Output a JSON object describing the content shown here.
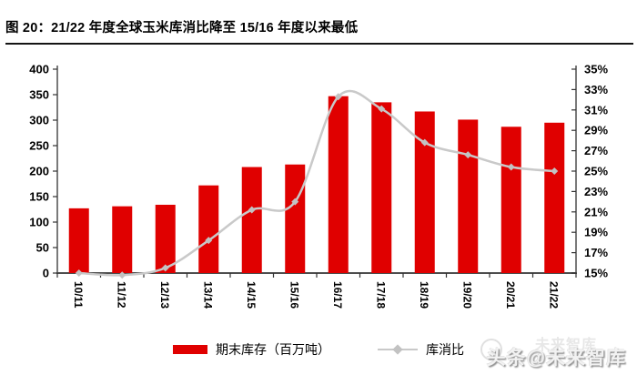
{
  "page": {
    "title": "图 20：21/22 年度全球玉米库消比降至 15/16 年度以来最低",
    "watermark": "头条@未来智库",
    "watermark_ghost": "未来智库"
  },
  "colors": {
    "bar": "#e00000",
    "line": "#c9c9c9",
    "marker": "#c2c2c2",
    "axis_side": "#333333",
    "axis_bottom": "#4d4d4d",
    "tick_text": "#000000"
  },
  "icons": {
    "watermark_logo": "smiley-circle-logo"
  },
  "chart_data": {
    "type": "bar",
    "combo": "bar+line",
    "title": "21/22 年度全球玉米库消比降至 15/16 年度以来最低",
    "categories": [
      "10/11",
      "11/12",
      "12/13",
      "13/14",
      "14/15",
      "15/16",
      "16/17",
      "17/18",
      "18/19",
      "19/20",
      "20/21",
      "21/22"
    ],
    "series": [
      {
        "name": "期末库存（百万吨）",
        "type": "bar",
        "axis": "left",
        "values": [
          127,
          131,
          134,
          172,
          208,
          213,
          347,
          335,
          317,
          301,
          287,
          295
        ]
      },
      {
        "name": "库消比",
        "type": "line",
        "axis": "right",
        "values": [
          15.0,
          14.8,
          15.5,
          18.2,
          21.2,
          22.0,
          32.3,
          31.1,
          27.8,
          26.6,
          25.4,
          25.0
        ]
      }
    ],
    "left_axis": {
      "min": 0,
      "max": 400,
      "step": 50,
      "ticks": [
        "0",
        "50",
        "100",
        "150",
        "200",
        "250",
        "300",
        "350",
        "400"
      ]
    },
    "right_axis": {
      "min": 15,
      "max": 35,
      "step": 2,
      "format": "percent",
      "ticks": [
        "15%",
        "17%",
        "19%",
        "21%",
        "23%",
        "25%",
        "27%",
        "29%",
        "31%",
        "33%",
        "35%"
      ]
    },
    "grid": false,
    "legend_position": "bottom",
    "x_label_rotation_deg": 90
  }
}
